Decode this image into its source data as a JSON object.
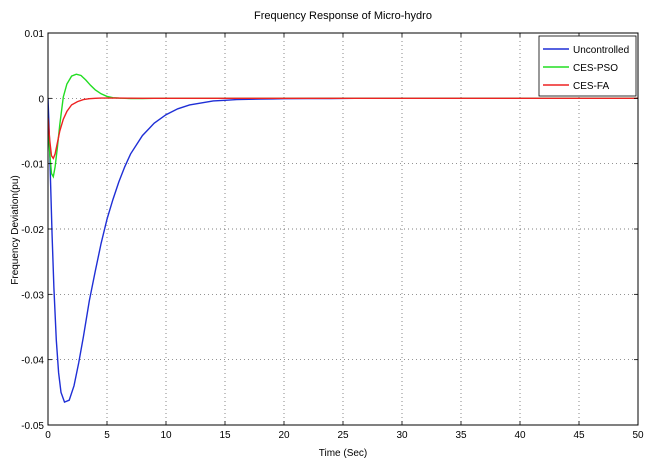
{
  "chart_data": {
    "type": "line",
    "title": "Frequency Response of Micro-hydro",
    "xlabel": "Time (Sec)",
    "ylabel": "Frequency Deviation(pu)",
    "xlim": [
      0,
      50
    ],
    "ylim": [
      -0.05,
      0.01
    ],
    "xticks": [
      0,
      5,
      10,
      15,
      20,
      25,
      30,
      35,
      40,
      45,
      50
    ],
    "yticks": [
      -0.05,
      -0.04,
      -0.03,
      -0.02,
      -0.01,
      0,
      0.01
    ],
    "xtick_labels": [
      "0",
      "5",
      "10",
      "15",
      "20",
      "25",
      "30",
      "35",
      "40",
      "45",
      "50"
    ],
    "ytick_labels": [
      "-0.05",
      "-0.04",
      "-0.03",
      "-0.02",
      "-0.01",
      "0",
      "0.01"
    ],
    "grid": true,
    "legend_position": "top-right",
    "series": [
      {
        "name": "Uncontrolled",
        "color": "#1f2fd6",
        "x": [
          0,
          0.1,
          0.2,
          0.35,
          0.5,
          0.7,
          0.9,
          1.1,
          1.4,
          1.8,
          2.2,
          2.6,
          3.0,
          3.5,
          4.0,
          4.5,
          5.0,
          5.5,
          6.0,
          6.5,
          7.0,
          8.0,
          9.0,
          10.0,
          11.0,
          12.0,
          13.0,
          14.0,
          15.0,
          16.0,
          17.0,
          18.0,
          19.0,
          20.0,
          22.0,
          24.0,
          26.0,
          30.0,
          35.0,
          40.0,
          45.0,
          50.0
        ],
        "values": [
          0,
          -0.005,
          -0.012,
          -0.021,
          -0.029,
          -0.037,
          -0.042,
          -0.045,
          -0.0465,
          -0.0462,
          -0.044,
          -0.0405,
          -0.0365,
          -0.031,
          -0.0265,
          -0.0222,
          -0.0185,
          -0.0155,
          -0.0128,
          -0.0105,
          -0.0085,
          -0.0057,
          -0.0038,
          -0.0025,
          -0.0016,
          -0.001,
          -0.0007,
          -0.0004,
          -0.0003,
          -0.0002,
          -0.00015,
          -0.0001,
          -8e-05,
          -5e-05,
          -3e-05,
          -2e-05,
          0,
          0,
          0,
          0,
          0,
          0
        ]
      },
      {
        "name": "CES-PSO",
        "color": "#22dd22",
        "x": [
          0,
          0.15,
          0.3,
          0.45,
          0.6,
          0.8,
          1.0,
          1.3,
          1.6,
          2.0,
          2.4,
          2.8,
          3.2,
          3.6,
          4.0,
          4.5,
          5.0,
          5.5,
          6.0,
          6.5,
          7.0,
          8.0,
          9.0,
          10.0,
          12.0,
          15.0,
          20.0,
          30.0,
          40.0,
          50.0
        ],
        "values": [
          -0.004,
          -0.0085,
          -0.0115,
          -0.012,
          -0.0105,
          -0.0075,
          -0.004,
          0.0002,
          0.0022,
          0.0034,
          0.0037,
          0.0035,
          0.0028,
          0.002,
          0.0013,
          0.0007,
          0.0003,
          0.0001,
          3e-05,
          0,
          -3e-05,
          -2e-05,
          0,
          0,
          0,
          0,
          0,
          0,
          0,
          0
        ]
      },
      {
        "name": "CES-FA",
        "color": "#ee2222",
        "x": [
          0,
          0.15,
          0.3,
          0.45,
          0.6,
          0.8,
          1.0,
          1.3,
          1.6,
          2.0,
          2.5,
          3.0,
          3.5,
          4.0,
          4.5,
          5.0,
          6.0,
          7.0,
          8.0,
          10.0,
          12.0,
          15.0,
          20.0,
          30.0,
          40.0,
          50.0
        ],
        "values": [
          -0.003,
          -0.0065,
          -0.0088,
          -0.0092,
          -0.0085,
          -0.0068,
          -0.005,
          -0.0032,
          -0.002,
          -0.001,
          -0.0005,
          -0.0002,
          -5e-05,
          0,
          3e-05,
          4e-05,
          3e-05,
          2e-05,
          1e-05,
          0,
          0,
          0,
          0,
          0,
          0,
          0
        ]
      }
    ]
  }
}
